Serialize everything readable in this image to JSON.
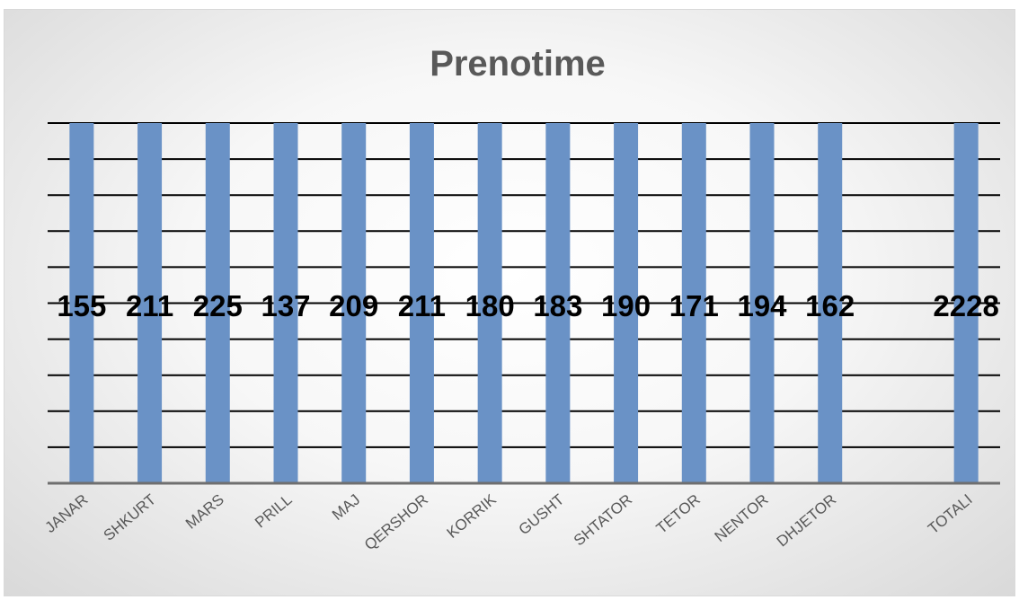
{
  "chart_data": {
    "type": "bar",
    "title": "Prenotime",
    "categories": [
      "JANAR",
      "SHKURT",
      "MARS",
      "PRILL",
      "MAJ",
      "QERSHOR",
      "KORRIK",
      "GUSHT",
      "SHTATOR",
      "TETOR",
      "NENTOR",
      "DHJETOR",
      "",
      "TOTALI"
    ],
    "values": [
      155,
      211,
      225,
      137,
      209,
      211,
      180,
      183,
      190,
      171,
      194,
      162,
      null,
      2228
    ],
    "data_labels": [
      "155",
      "211",
      "225",
      "137",
      "209",
      "211",
      "180",
      "183",
      "190",
      "171",
      "194",
      "162",
      "",
      "2228"
    ],
    "bar_color": "#6a92c6",
    "grid": true,
    "legend": "none"
  }
}
